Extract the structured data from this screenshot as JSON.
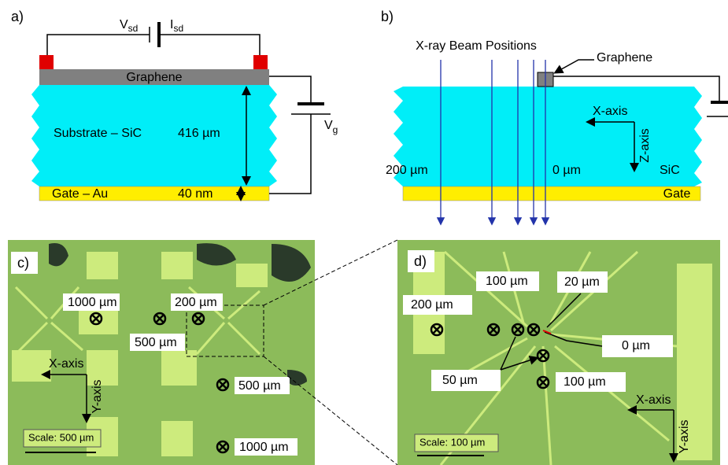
{
  "panels": {
    "a": {
      "label": "a)",
      "v_sd": {
        "main": "V",
        "sub": "sd"
      },
      "i_sd": {
        "main": "I",
        "sub": "sd"
      },
      "graphene": "Graphene",
      "substrate": "Substrate – SiC",
      "thickness": "416 µm",
      "v_g": {
        "main": "V",
        "sub": "g"
      },
      "gate": "Gate – Au",
      "gate_thickness": "40 nm"
    },
    "b": {
      "label": "b)",
      "beams": "X-ray Beam Positions",
      "graphene": "Graphene",
      "x_axis": "X-axis",
      "z_axis": "Z-axis",
      "left_position": "200 µm",
      "zero_position": "0 µm",
      "substrate": "SiC",
      "gate": "Gate"
    },
    "c": {
      "label": "c)",
      "markers": [
        "1000 µm",
        "200 µm",
        "500 µm",
        "500 µm",
        "1000 µm"
      ],
      "x_axis": "X-axis",
      "y_axis": "Y-axis",
      "scale": "Scale: 500 µm"
    },
    "d": {
      "label": "d)",
      "markers": [
        "100 µm",
        "20 µm",
        "200 µm",
        "0 µm",
        "50 µm",
        "100 µm"
      ],
      "x_axis": "X-axis",
      "y_axis": "Y-axis",
      "scale": "Scale: 100 µm"
    }
  }
}
